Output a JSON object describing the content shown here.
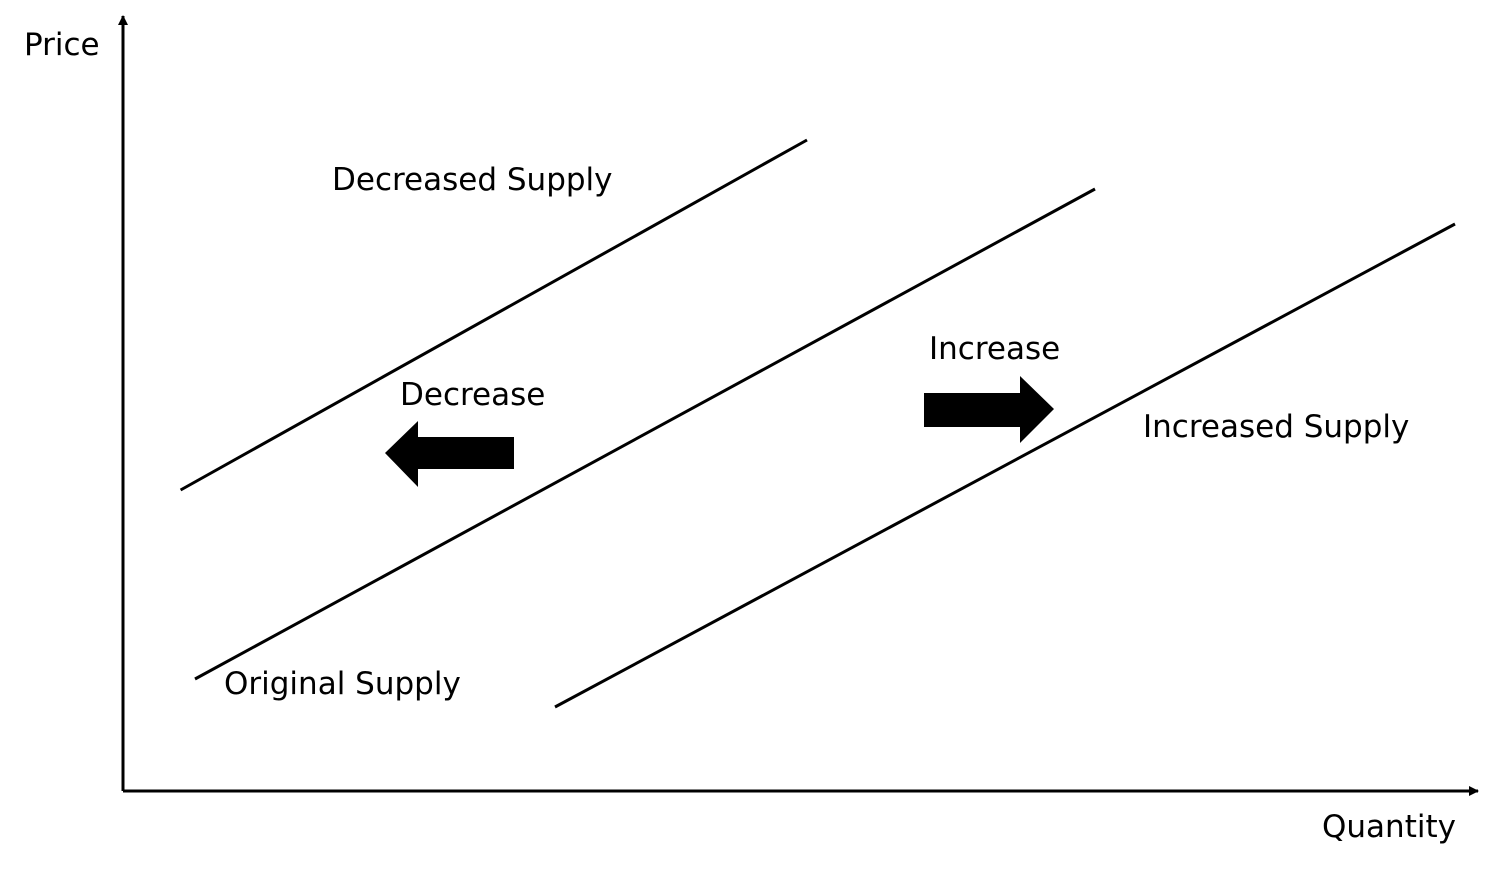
{
  "chart_data": {
    "type": "line",
    "title": "",
    "xlabel": "Quantity",
    "ylabel": "Price",
    "grid": false,
    "series": [
      {
        "name": "Decreased Supply",
        "points": [
          [
            0.8,
            4.3
          ],
          [
            9.5,
            9.3
          ]
        ]
      },
      {
        "name": "Original Supply",
        "points": [
          [
            1.0,
            1.6
          ],
          [
            13.5,
            8.6
          ]
        ]
      },
      {
        "name": "Increased Supply",
        "points": [
          [
            6.0,
            1.2
          ],
          [
            18.5,
            8.1
          ]
        ]
      }
    ],
    "annotations": [
      {
        "text": "Decrease",
        "direction": "left"
      },
      {
        "text": "Increase",
        "direction": "right"
      }
    ]
  }
}
